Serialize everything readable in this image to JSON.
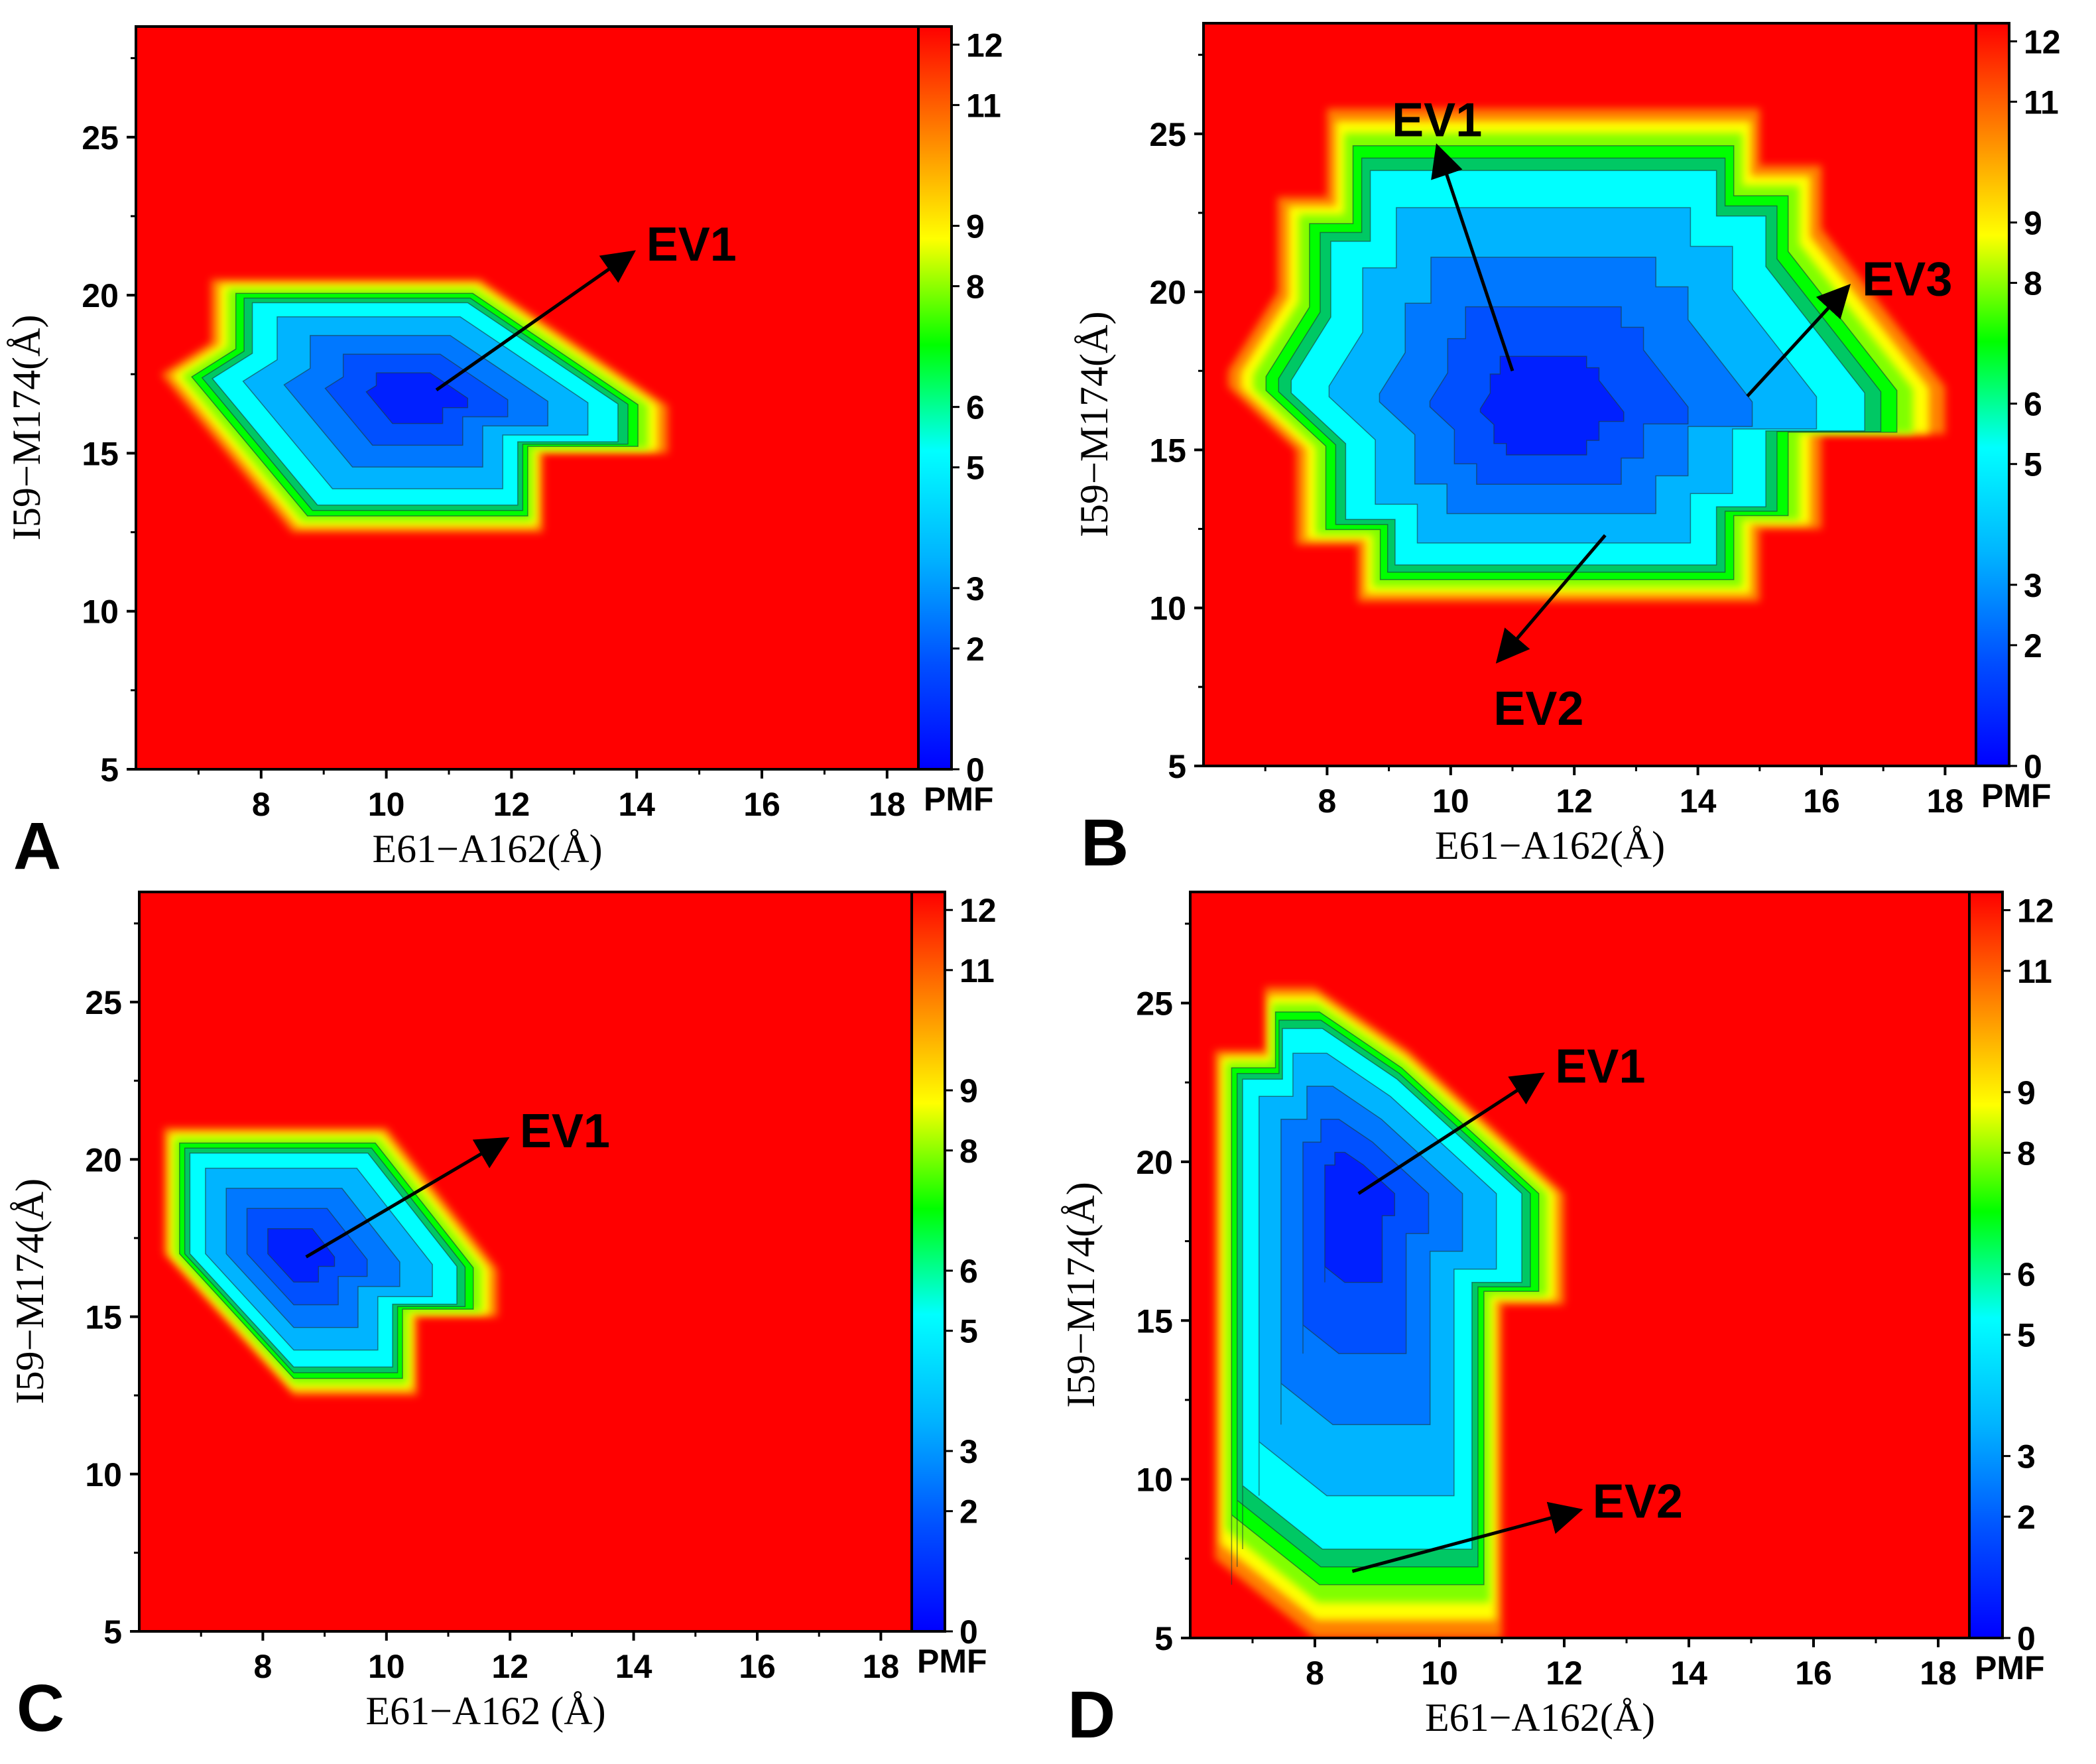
{
  "figure": {
    "colormap": [
      "#0000ff",
      "#0050ff",
      "#00b4ff",
      "#00ffff",
      "#00ff00",
      "#ffff00",
      "#ff8000",
      "#ff0000"
    ],
    "background_color": "#ff0000"
  },
  "chart_data": [
    {
      "type": "heatmap",
      "panel": "A",
      "xlabel": "E61−A162(Å)",
      "ylabel": "I59−M174(Å)",
      "xlim": [
        6,
        18.5
      ],
      "ylim": [
        5,
        28.5
      ],
      "xticks": [
        8,
        10,
        12,
        14,
        16,
        18
      ],
      "yticks": [
        5,
        10,
        15,
        20,
        25
      ],
      "colorbar": {
        "title": "PMF",
        "range": [
          0,
          12.3
        ],
        "ticks": [
          0,
          2,
          3,
          5,
          6,
          8,
          9,
          11,
          12
        ]
      },
      "basins": [
        {
          "x": [
            6.4,
            7.2,
            7.2,
            8.0,
            11.5,
            11.5,
            14.5,
            14.5,
            12.5,
            12.5,
            8.5
          ],
          "y": [
            17.5,
            18.5,
            20.5,
            20.5,
            20.5,
            20.5,
            16.5,
            15.0,
            15.0,
            12.5,
            12.5
          ],
          "minimum": [
            10.5,
            16.8
          ],
          "min_value": 0
        }
      ],
      "annotations": [
        {
          "label": "EV1",
          "from": [
            10.8,
            17.0
          ],
          "to": [
            13.9,
            21.3
          ]
        }
      ]
    },
    {
      "type": "heatmap",
      "panel": "B",
      "xlabel": "E61−A162(Å)",
      "ylabel": "I59−M174(Å)",
      "xlim": [
        6,
        18.5
      ],
      "ylim": [
        5,
        28.5
      ],
      "xticks": [
        8,
        10,
        12,
        14,
        16,
        18
      ],
      "yticks": [
        5,
        10,
        15,
        20,
        25
      ],
      "colorbar": {
        "title": "PMF",
        "range": [
          0,
          12.3
        ],
        "ticks": [
          0,
          2,
          3,
          5,
          6,
          8,
          9,
          11,
          12
        ]
      },
      "basins": [
        {
          "x": [
            6.4,
            7.2,
            7.2,
            8.0,
            8.0,
            15.0,
            15.0,
            16.0,
            16.0,
            18.0,
            18.0,
            16.0,
            16.0,
            15.0,
            15.0,
            8.5,
            8.5,
            7.5,
            7.5,
            6.4
          ],
          "y": [
            17.5,
            20.0,
            23.0,
            23.0,
            25.8,
            25.8,
            24.0,
            24.0,
            22.0,
            17.0,
            15.5,
            15.5,
            12.5,
            12.5,
            10.2,
            10.2,
            12.0,
            12.0,
            15.0,
            17.0
          ],
          "minimum": [
            11.5,
            16.0
          ],
          "min_value": 0
        }
      ],
      "annotations": [
        {
          "label": "EV1",
          "from": [
            11.0,
            17.5
          ],
          "to": [
            9.8,
            24.5
          ]
        },
        {
          "label": "EV2",
          "from": [
            12.5,
            12.3
          ],
          "to": [
            10.8,
            8.4
          ]
        },
        {
          "label": "EV3",
          "from": [
            14.8,
            16.7
          ],
          "to": [
            16.4,
            20.1
          ]
        }
      ]
    },
    {
      "type": "heatmap",
      "panel": "C",
      "xlabel": "E61−A162 (Å)",
      "ylabel": "I59−M174(Å)",
      "xlim": [
        6,
        18.5
      ],
      "ylim": [
        5,
        28.5
      ],
      "xticks": [
        8,
        10,
        12,
        14,
        16,
        18
      ],
      "yticks": [
        5,
        10,
        15,
        20,
        25
      ],
      "colorbar": {
        "title": "PMF",
        "range": [
          0,
          12.3
        ],
        "ticks": [
          0,
          2,
          3,
          5,
          6,
          8,
          9,
          11,
          12
        ]
      },
      "basins": [
        {
          "x": [
            6.4,
            6.4,
            10.0,
            11.8,
            11.8,
            10.5,
            10.5,
            8.5
          ],
          "y": [
            17.0,
            21.0,
            21.0,
            16.5,
            15.0,
            15.0,
            12.5,
            12.5
          ],
          "minimum": [
            8.5,
            17.0
          ],
          "min_value": 0
        }
      ],
      "annotations": [
        {
          "label": "EV1",
          "from": [
            8.7,
            16.9
          ],
          "to": [
            11.9,
            20.6
          ]
        }
      ]
    },
    {
      "type": "heatmap",
      "panel": "D",
      "xlabel": "E61−A162(Å)",
      "ylabel": "I59−M174(Å)",
      "xlim": [
        6,
        18.5
      ],
      "ylim": [
        5,
        28.5
      ],
      "xticks": [
        8,
        10,
        12,
        14,
        16,
        18
      ],
      "yticks": [
        5,
        10,
        15,
        20,
        25
      ],
      "colorbar": {
        "title": "PMF",
        "range": [
          0,
          12.3
        ],
        "ticks": [
          0,
          2,
          3,
          5,
          6,
          8,
          9,
          11,
          12
        ]
      },
      "basins": [
        {
          "x": [
            6.4,
            6.4,
            7.2,
            7.2,
            8.0,
            8.0,
            9.5,
            12.0,
            12.0,
            11.0,
            11.0,
            8.0,
            6.4
          ],
          "y": [
            5.0,
            23.5,
            23.5,
            25.5,
            25.5,
            25.5,
            23.5,
            19.0,
            15.5,
            15.5,
            5.0,
            5.0,
            7.5
          ],
          "minimum": [
            8.6,
            19.0
          ],
          "min_value": 0
        }
      ],
      "annotations": [
        {
          "label": "EV1",
          "from": [
            8.7,
            19.0
          ],
          "to": [
            11.6,
            22.7
          ]
        },
        {
          "label": "EV2",
          "from": [
            8.6,
            7.1
          ],
          "to": [
            12.2,
            9.0
          ]
        }
      ]
    }
  ]
}
